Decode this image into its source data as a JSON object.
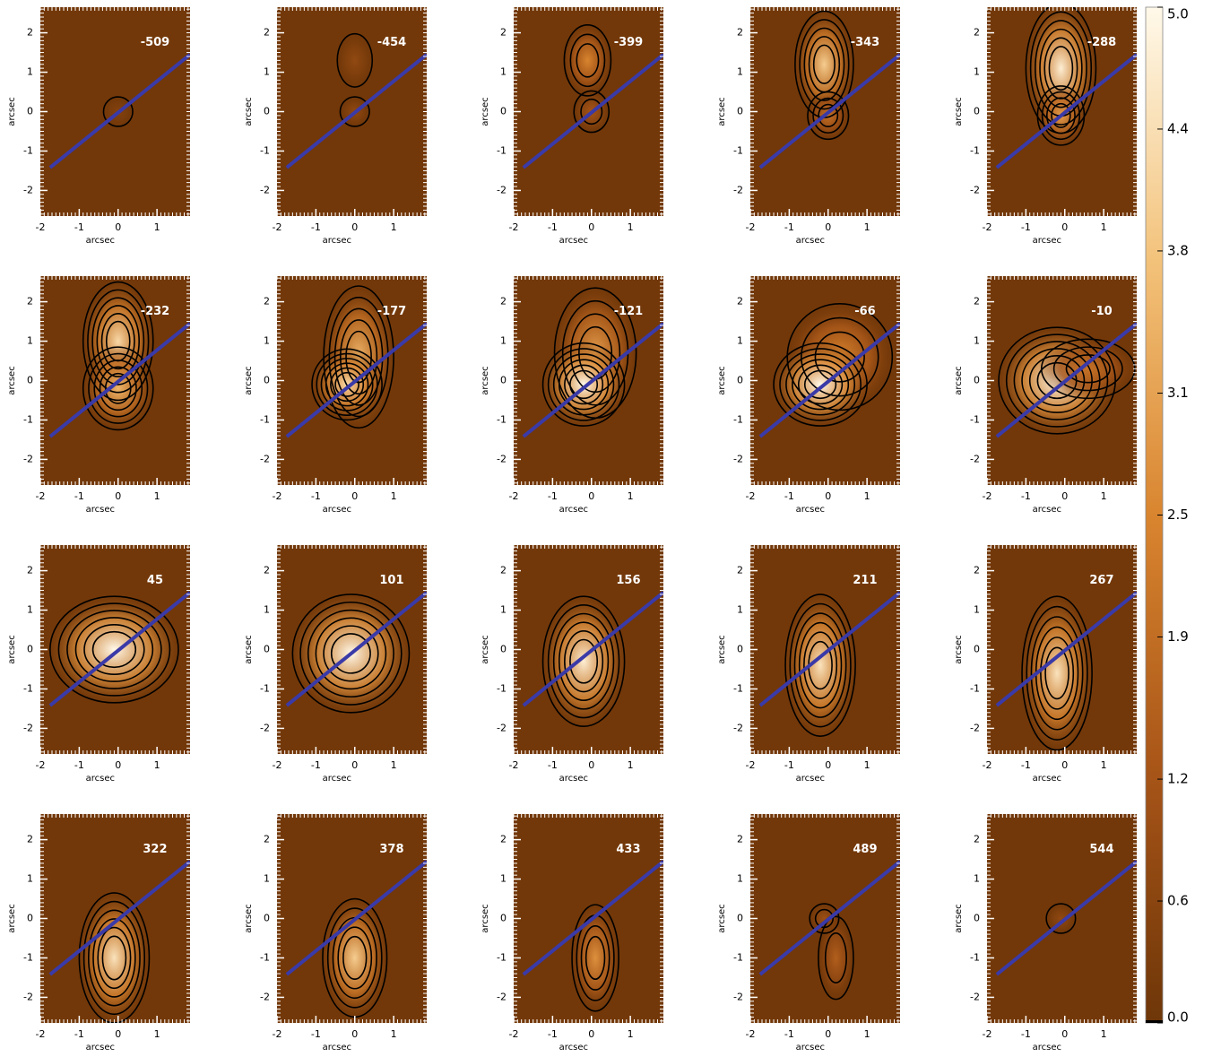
{
  "chart_data": [
    {
      "type": "image",
      "title": "-509",
      "xlabel": "arcsec",
      "ylabel": "arcsec",
      "xlim": [
        -2,
        1.85
      ],
      "ylim": [
        -2.65,
        2.65
      ],
      "xticks": [
        -2,
        -1,
        0,
        1
      ],
      "yticks": [
        -2,
        -1,
        0,
        1,
        2
      ]
    },
    {
      "type": "image",
      "title": "-454",
      "xlabel": "arcsec",
      "ylabel": "arcsec",
      "xlim": [
        -2,
        1.85
      ],
      "ylim": [
        -2.65,
        2.65
      ],
      "xticks": [
        -2,
        -1,
        0,
        1
      ],
      "yticks": [
        -2,
        -1,
        0,
        1,
        2
      ]
    },
    {
      "type": "image",
      "title": "-399",
      "xlabel": "arcsec",
      "ylabel": "arcsec",
      "xlim": [
        -2,
        1.85
      ],
      "ylim": [
        -2.65,
        2.65
      ],
      "xticks": [
        -2,
        -1,
        0,
        1
      ],
      "yticks": [
        -2,
        -1,
        0,
        1,
        2
      ]
    },
    {
      "type": "image",
      "title": "-343",
      "xlabel": "arcsec",
      "ylabel": "arcsec",
      "xlim": [
        -2,
        1.85
      ],
      "ylim": [
        -2.65,
        2.65
      ],
      "xticks": [
        -2,
        -1,
        0,
        1
      ],
      "yticks": [
        -2,
        -1,
        0,
        1,
        2
      ]
    },
    {
      "type": "image",
      "title": "-288",
      "xlabel": "arcsec",
      "ylabel": "arcsec",
      "xlim": [
        -2,
        1.85
      ],
      "ylim": [
        -2.65,
        2.65
      ],
      "xticks": [
        -2,
        -1,
        0,
        1
      ],
      "yticks": [
        -2,
        -1,
        0,
        1,
        2
      ]
    },
    {
      "type": "image",
      "title": "-232",
      "xlabel": "arcsec",
      "ylabel": "arcsec",
      "xlim": [
        -2,
        1.85
      ],
      "ylim": [
        -2.65,
        2.65
      ],
      "xticks": [
        -2,
        -1,
        0,
        1
      ],
      "yticks": [
        -2,
        -1,
        0,
        1,
        2
      ]
    },
    {
      "type": "image",
      "title": "-177",
      "xlabel": "arcsec",
      "ylabel": "arcsec",
      "xlim": [
        -2,
        1.85
      ],
      "ylim": [
        -2.65,
        2.65
      ],
      "xticks": [
        -2,
        -1,
        0,
        1
      ],
      "yticks": [
        -2,
        -1,
        0,
        1,
        2
      ]
    },
    {
      "type": "image",
      "title": "-121",
      "xlabel": "arcsec",
      "ylabel": "arcsec",
      "xlim": [
        -2,
        1.85
      ],
      "ylim": [
        -2.65,
        2.65
      ],
      "xticks": [
        -2,
        -1,
        0,
        1
      ],
      "yticks": [
        -2,
        -1,
        0,
        1,
        2
      ]
    },
    {
      "type": "image",
      "title": "-66",
      "xlabel": "arcsec",
      "ylabel": "arcsec",
      "xlim": [
        -2,
        1.85
      ],
      "ylim": [
        -2.65,
        2.65
      ],
      "xticks": [
        -2,
        -1,
        0,
        1
      ],
      "yticks": [
        -2,
        -1,
        0,
        1,
        2
      ]
    },
    {
      "type": "image",
      "title": "-10",
      "xlabel": "arcsec",
      "ylabel": "arcsec",
      "xlim": [
        -2,
        1.85
      ],
      "ylim": [
        -2.65,
        2.65
      ],
      "xticks": [
        -2,
        -1,
        0,
        1
      ],
      "yticks": [
        -2,
        -1,
        0,
        1,
        2
      ]
    },
    {
      "type": "image",
      "title": "45",
      "xlabel": "arcsec",
      "ylabel": "arcsec",
      "xlim": [
        -2,
        1.85
      ],
      "ylim": [
        -2.65,
        2.65
      ],
      "xticks": [
        -2,
        -1,
        0,
        1
      ],
      "yticks": [
        -2,
        -1,
        0,
        1,
        2
      ]
    },
    {
      "type": "image",
      "title": "101",
      "xlabel": "arcsec",
      "ylabel": "arcsec",
      "xlim": [
        -2,
        1.85
      ],
      "ylim": [
        -2.65,
        2.65
      ],
      "xticks": [
        -2,
        -1,
        0,
        1
      ],
      "yticks": [
        -2,
        -1,
        0,
        1,
        2
      ]
    },
    {
      "type": "image",
      "title": "156",
      "xlabel": "arcsec",
      "ylabel": "arcsec",
      "xlim": [
        -2,
        1.85
      ],
      "ylim": [
        -2.65,
        2.65
      ],
      "xticks": [
        -2,
        -1,
        0,
        1
      ],
      "yticks": [
        -2,
        -1,
        0,
        1,
        2
      ]
    },
    {
      "type": "image",
      "title": "211",
      "xlabel": "arcsec",
      "ylabel": "arcsec",
      "xlim": [
        -2,
        1.85
      ],
      "ylim": [
        -2.65,
        2.65
      ],
      "xticks": [
        -2,
        -1,
        0,
        1
      ],
      "yticks": [
        -2,
        -1,
        0,
        1,
        2
      ]
    },
    {
      "type": "image",
      "title": "267",
      "xlabel": "arcsec",
      "ylabel": "arcsec",
      "xlim": [
        -2,
        1.85
      ],
      "ylim": [
        -2.65,
        2.65
      ],
      "xticks": [
        -2,
        -1,
        0,
        1
      ],
      "yticks": [
        -2,
        -1,
        0,
        1,
        2
      ]
    },
    {
      "type": "image",
      "title": "322",
      "xlabel": "arcsec",
      "ylabel": "arcsec",
      "xlim": [
        -2,
        1.85
      ],
      "ylim": [
        -2.65,
        2.65
      ],
      "xticks": [
        -2,
        -1,
        0,
        1
      ],
      "yticks": [
        -2,
        -1,
        0,
        1,
        2
      ]
    },
    {
      "type": "image",
      "title": "378",
      "xlabel": "arcsec",
      "ylabel": "arcsec",
      "xlim": [
        -2,
        1.85
      ],
      "ylim": [
        -2.65,
        2.65
      ],
      "xticks": [
        -2,
        -1,
        0,
        1
      ],
      "yticks": [
        -2,
        -1,
        0,
        1,
        2
      ]
    },
    {
      "type": "image",
      "title": "433",
      "xlabel": "arcsec",
      "ylabel": "arcsec",
      "xlim": [
        -2,
        1.85
      ],
      "ylim": [
        -2.65,
        2.65
      ],
      "xticks": [
        -2,
        -1,
        0,
        1
      ],
      "yticks": [
        -2,
        -1,
        0,
        1,
        2
      ]
    },
    {
      "type": "image",
      "title": "489",
      "xlabel": "arcsec",
      "ylabel": "arcsec",
      "xlim": [
        -2,
        1.85
      ],
      "ylim": [
        -2.65,
        2.65
      ],
      "xticks": [
        -2,
        -1,
        0,
        1
      ],
      "yticks": [
        -2,
        -1,
        0,
        1,
        2
      ]
    },
    {
      "type": "image",
      "title": "544",
      "xlabel": "arcsec",
      "ylabel": "arcsec",
      "xlim": [
        -2,
        1.85
      ],
      "ylim": [
        -2.65,
        2.65
      ],
      "xticks": [
        -2,
        -1,
        0,
        1
      ],
      "yticks": [
        -2,
        -1,
        0,
        1,
        2
      ]
    },
    {
      "type": "colorbar",
      "ylim": [
        0,
        5
      ],
      "yticks": [
        {
          "value": 0,
          "label": "0.0"
        },
        0.6,
        1.2,
        1.9,
        2.5,
        3.1,
        3.8,
        4.4,
        {
          "value": 5,
          "label": "5.0"
        }
      ],
      "colors": [
        "#6e3608",
        "#a85518",
        "#d9852f",
        "#f3c27a",
        "#fff9ea"
      ],
      "line_color": "#3a3aa8",
      "contour_color": "#000000"
    }
  ]
}
